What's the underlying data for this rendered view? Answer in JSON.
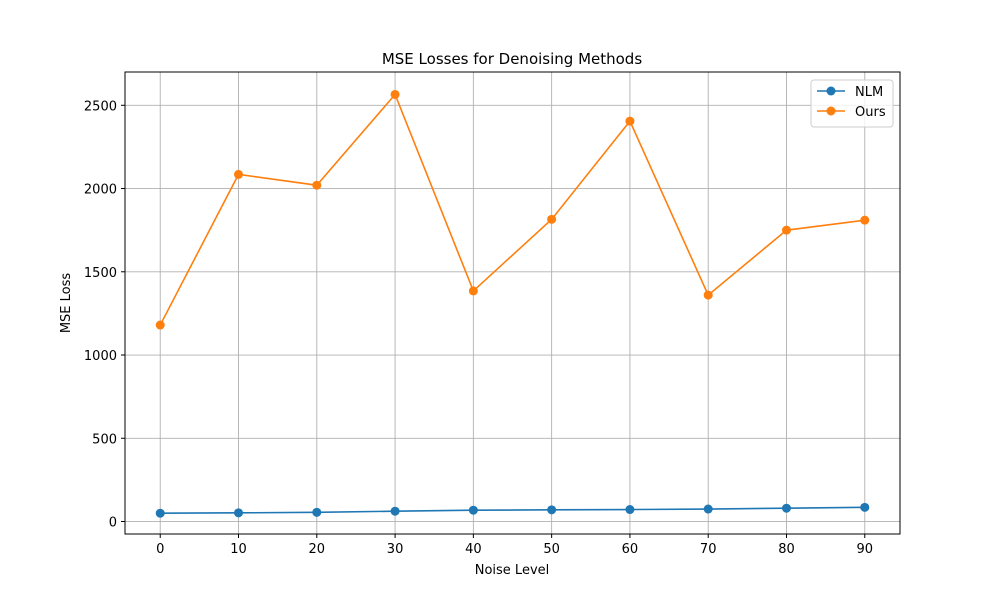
{
  "chart_data": {
    "type": "line",
    "title": "MSE Losses for Denoising Methods",
    "xlabel": "Noise Level",
    "ylabel": "MSE Loss",
    "x": [
      0,
      10,
      20,
      30,
      40,
      50,
      60,
      70,
      80,
      90
    ],
    "xlim": [
      -4.5,
      94.5
    ],
    "ylim": [
      -75,
      2700
    ],
    "xticks": [
      0,
      10,
      20,
      30,
      40,
      50,
      60,
      70,
      80,
      90
    ],
    "yticks": [
      0,
      500,
      1000,
      1500,
      2000,
      2500
    ],
    "grid": true,
    "legend_position": "top-right",
    "series": [
      {
        "name": "NLM",
        "color": "#1f77b4",
        "values": [
          50,
          52,
          55,
          62,
          68,
          70,
          72,
          75,
          80,
          85
        ]
      },
      {
        "name": "Ours",
        "color": "#ff7f0e",
        "values": [
          1180,
          2085,
          2020,
          2565,
          1385,
          1815,
          2405,
          1360,
          1750,
          1810
        ]
      }
    ]
  }
}
